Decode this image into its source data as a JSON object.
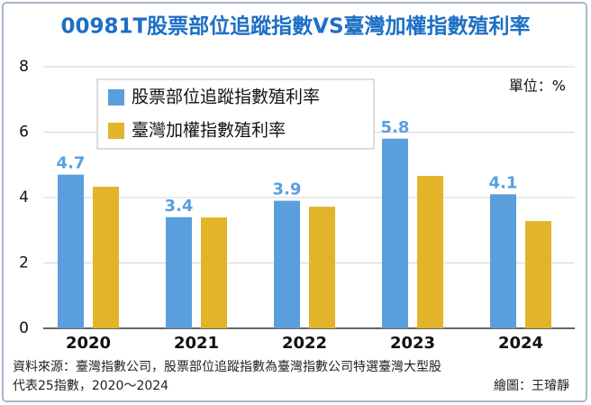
{
  "chart_data": {
    "type": "bar",
    "title": "00981T股票部位追蹤指數VS臺灣加權指數殖利率",
    "unit": "單位：%",
    "categories": [
      "2020",
      "2021",
      "2022",
      "2023",
      "2024"
    ],
    "series": [
      {
        "name": "股票部位追蹤指數殖利率",
        "color": "#5a9fdc",
        "values": [
          4.7,
          3.4,
          3.9,
          5.8,
          4.1
        ],
        "data_labels": true
      },
      {
        "name": "臺灣加權指數殖利率",
        "color": "#e2b42a",
        "values": [
          4.33,
          3.39,
          3.72,
          4.66,
          3.28
        ],
        "data_labels": false
      }
    ],
    "ylim": [
      0,
      8
    ],
    "yticks": [
      0,
      2,
      4,
      6,
      8
    ],
    "grid": true,
    "source": [
      "資料來源：臺灣指數公司，股票部位追蹤指數為臺灣指數公司特選臺灣大型股",
      "代表25指數，2020～2024"
    ],
    "credit": "繪圖：王璿靜"
  }
}
